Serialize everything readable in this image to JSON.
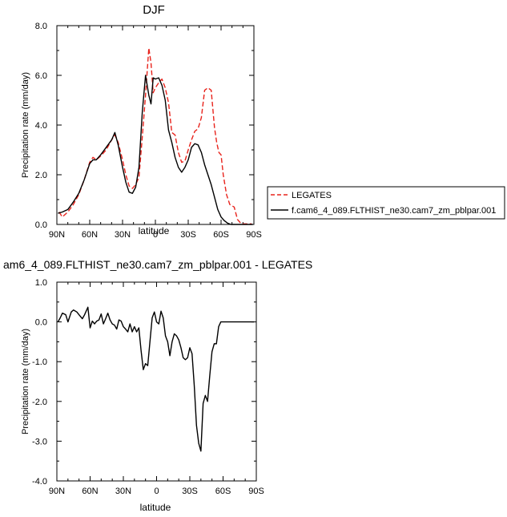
{
  "chart_data": [
    {
      "type": "line",
      "title": "DJF",
      "xlabel": "latitude",
      "ylabel": "Precipitation rate (mm/day)",
      "xlim": [
        90,
        -90
      ],
      "ylim": [
        0.0,
        8.0
      ],
      "xticks": [
        90,
        60,
        30,
        0,
        -30,
        -60,
        -90
      ],
      "xtick_labels": [
        "90N",
        "60N",
        "30N",
        "0",
        "30S",
        "60S",
        "90S"
      ],
      "yticks": [
        0.0,
        2.0,
        4.0,
        6.0,
        8.0
      ],
      "ytick_labels": [
        "0.0",
        "2.0",
        "4.0",
        "6.0",
        "8.0"
      ],
      "legend_position": "right, outside plot",
      "grid": false,
      "series": [
        {
          "name": "LEGATES",
          "color": "#e8231c",
          "dash": "dashed",
          "x": [
            88,
            85,
            80,
            75,
            70,
            65,
            60,
            57,
            54,
            50,
            45,
            40,
            37,
            34,
            30,
            27,
            24,
            21,
            18,
            15,
            12,
            9,
            6,
            4,
            2,
            0,
            -3,
            -6,
            -9,
            -12,
            -15,
            -18,
            -21,
            -24,
            -27,
            -30,
            -33,
            -36,
            -39,
            -42,
            -45,
            -48,
            -51,
            -54,
            -56,
            -58,
            -60,
            -62,
            -65,
            -68,
            -72,
            -75,
            -78,
            -80,
            -83,
            -86,
            -88
          ],
          "y": [
            0.5,
            0.3,
            0.5,
            0.8,
            1.2,
            1.8,
            2.5,
            2.7,
            2.6,
            2.75,
            3.0,
            3.4,
            3.6,
            3.3,
            2.6,
            2.0,
            1.55,
            1.45,
            1.6,
            1.9,
            3.5,
            5.2,
            7.1,
            6.5,
            5.3,
            5.5,
            5.7,
            5.85,
            5.5,
            4.9,
            3.7,
            3.6,
            2.9,
            2.5,
            2.55,
            3.0,
            3.4,
            3.75,
            3.85,
            4.3,
            5.4,
            5.5,
            5.4,
            3.9,
            3.3,
            2.9,
            2.8,
            2.0,
            1.2,
            0.8,
            0.7,
            0.2,
            0.05,
            0.02,
            0.02,
            0.02,
            0.02
          ]
        },
        {
          "name": "f.cam6_4_089.FLTHIST_ne30.cam7_zm_pblpar.001",
          "color": "#000000",
          "dash": "solid",
          "x": [
            89,
            85,
            80,
            75,
            70,
            65,
            60,
            57,
            54,
            50,
            45,
            40,
            37,
            34,
            30,
            27,
            24,
            21,
            18,
            15,
            12,
            9,
            6,
            4,
            2,
            0,
            -3,
            -6,
            -9,
            -12,
            -15,
            -18,
            -21,
            -24,
            -27,
            -30,
            -33,
            -36,
            -39,
            -42,
            -45,
            -48,
            -51,
            -54,
            -57,
            -60,
            -63,
            -66,
            -69,
            -72,
            -75,
            -78,
            -81,
            -84,
            -87,
            -89
          ],
          "y": [
            0.45,
            0.5,
            0.6,
            0.9,
            1.25,
            1.8,
            2.45,
            2.6,
            2.6,
            2.8,
            3.1,
            3.4,
            3.7,
            3.2,
            2.3,
            1.7,
            1.3,
            1.25,
            1.5,
            2.3,
            4.5,
            6.0,
            5.2,
            4.85,
            5.9,
            5.85,
            5.9,
            5.6,
            5.0,
            3.8,
            3.3,
            2.7,
            2.3,
            2.1,
            2.3,
            2.6,
            3.1,
            3.25,
            3.2,
            2.9,
            2.4,
            2.0,
            1.6,
            1.1,
            0.6,
            0.3,
            0.15,
            0.05,
            0.0,
            0.0,
            0.0,
            0.0,
            0.0,
            0.0,
            0.0,
            0.0
          ]
        }
      ]
    },
    {
      "type": "line",
      "title": "am6_4_089.FLTHIST_ne30.cam7_zm_pblpar.001 - LEGATES",
      "xlabel": "latitude",
      "ylabel": "Precipitation rate (mm/day)",
      "xlim": [
        90,
        -90
      ],
      "ylim": [
        -4.0,
        1.0
      ],
      "xticks": [
        90,
        60,
        30,
        0,
        -30,
        -60,
        -90
      ],
      "xtick_labels": [
        "90N",
        "60N",
        "30N",
        "0",
        "30S",
        "60S",
        "90S"
      ],
      "yticks": [
        -4.0,
        -3.0,
        -2.0,
        -1.0,
        0.0,
        1.0
      ],
      "ytick_labels": [
        "-4.0",
        "-3.0",
        "-2.0",
        "-1.0",
        "0.0",
        "1.0"
      ],
      "grid": false,
      "series": [
        {
          "color": "#000000",
          "dash": "solid",
          "x": [
            89,
            87,
            85,
            82,
            80,
            77,
            75,
            72,
            70,
            67,
            65,
            62,
            60,
            58,
            56,
            54,
            52,
            50,
            48,
            46,
            44,
            42,
            40,
            38,
            36,
            34,
            32,
            30,
            28,
            26,
            24,
            22,
            20,
            18,
            16,
            14,
            12,
            10,
            8,
            6,
            4,
            2,
            0,
            -2,
            -4,
            -6,
            -8,
            -10,
            -12,
            -14,
            -16,
            -18,
            -20,
            -22,
            -24,
            -26,
            -28,
            -30,
            -32,
            -34,
            -36,
            -38,
            -40,
            -42,
            -44,
            -46,
            -48,
            -50,
            -52,
            -54,
            -56,
            -58,
            -60,
            -62,
            -64,
            -66,
            -68,
            -70,
            -72,
            -74,
            -76,
            -78,
            -80,
            -82,
            -84,
            -86,
            -88
          ],
          "y": [
            0.0,
            0.1,
            0.22,
            0.18,
            0.0,
            0.25,
            0.3,
            0.25,
            0.18,
            0.08,
            0.18,
            0.37,
            -0.15,
            0.02,
            -0.05,
            0.02,
            0.05,
            0.2,
            -0.05,
            0.08,
            0.22,
            0.05,
            -0.05,
            -0.08,
            -0.18,
            0.05,
            0.02,
            -0.12,
            -0.18,
            -0.25,
            -0.05,
            -0.25,
            -0.12,
            -0.25,
            -0.15,
            -0.72,
            -1.2,
            -1.05,
            -1.1,
            -0.5,
            0.1,
            0.25,
            0.0,
            -0.05,
            0.27,
            0.1,
            -0.35,
            -0.5,
            -0.85,
            -0.5,
            -0.3,
            -0.35,
            -0.45,
            -0.65,
            -0.9,
            -0.95,
            -0.9,
            -0.65,
            -0.8,
            -1.6,
            -2.6,
            -3.05,
            -3.25,
            -2.05,
            -1.85,
            -2.0,
            -1.35,
            -0.75,
            -0.55,
            -0.55,
            -0.12,
            0.0,
            0.0,
            0.0,
            0.0,
            0.0,
            0.0,
            0.0,
            0.0,
            0.0,
            0.0,
            0.0,
            0.0,
            0.0,
            0.0,
            0.0,
            0.0
          ]
        }
      ]
    }
  ]
}
